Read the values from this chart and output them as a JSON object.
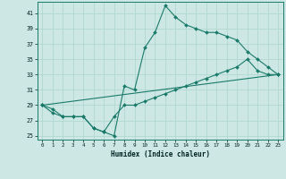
{
  "title": "",
  "xlabel": "Humidex (Indice chaleur)",
  "bg_color": "#cde8e4",
  "grid_color": "#b0d8d0",
  "line_color": "#1a7a6a",
  "xlim": [
    -0.5,
    23.5
  ],
  "ylim": [
    24.5,
    42.5
  ],
  "yticks": [
    25,
    27,
    29,
    31,
    33,
    35,
    37,
    39,
    41
  ],
  "xticks": [
    0,
    1,
    2,
    3,
    4,
    5,
    6,
    7,
    8,
    9,
    10,
    11,
    12,
    13,
    14,
    15,
    16,
    17,
    18,
    19,
    20,
    21,
    22,
    23
  ],
  "line1_x": [
    0,
    1,
    2,
    3,
    4,
    5,
    6,
    7,
    8,
    9,
    10,
    11,
    12,
    13,
    14,
    15,
    16,
    17,
    18,
    19,
    20,
    21,
    22,
    23
  ],
  "line1_y": [
    29.0,
    28.0,
    27.5,
    27.5,
    27.5,
    26.0,
    25.5,
    25.0,
    31.5,
    31.0,
    36.5,
    38.5,
    42.0,
    40.5,
    39.5,
    39.0,
    38.5,
    38.5,
    38.0,
    37.5,
    36.0,
    35.0,
    34.0,
    33.0
  ],
  "line2_x": [
    0,
    1,
    2,
    3,
    4,
    5,
    6,
    7,
    8,
    9,
    10,
    11,
    12,
    13,
    14,
    15,
    16,
    17,
    18,
    19,
    20,
    21,
    22,
    23
  ],
  "line2_y": [
    29.0,
    28.5,
    27.5,
    27.5,
    27.5,
    26.0,
    25.5,
    27.5,
    29.0,
    29.0,
    29.5,
    30.0,
    30.5,
    31.0,
    31.5,
    32.0,
    32.5,
    33.0,
    33.5,
    34.0,
    35.0,
    33.5,
    33.0,
    33.0
  ],
  "line3_x": [
    0,
    23
  ],
  "line3_y": [
    29.0,
    33.0
  ]
}
